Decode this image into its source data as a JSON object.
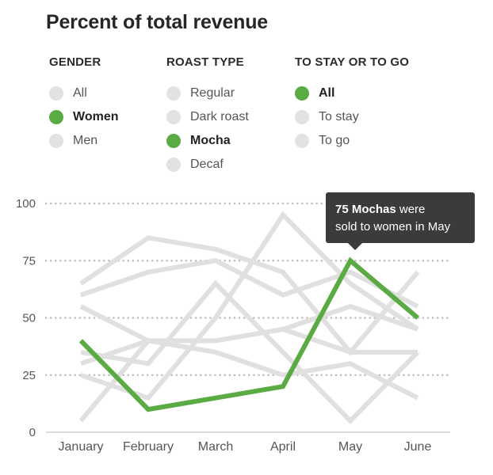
{
  "title": "Percent of total revenue",
  "filters": [
    {
      "header": "GENDER",
      "options": [
        {
          "label": "All",
          "active": false
        },
        {
          "label": "Women",
          "active": true
        },
        {
          "label": "Men",
          "active": false
        }
      ]
    },
    {
      "header": "ROAST TYPE",
      "options": [
        {
          "label": "Regular",
          "active": false
        },
        {
          "label": "Dark roast",
          "active": false
        },
        {
          "label": "Mocha",
          "active": true
        },
        {
          "label": "Decaf",
          "active": false
        }
      ]
    },
    {
      "header": "TO STAY OR TO GO",
      "options": [
        {
          "label": "All",
          "active": true
        },
        {
          "label": "To stay",
          "active": false
        },
        {
          "label": "To go",
          "active": false
        }
      ]
    }
  ],
  "tooltip": {
    "bold": "75 Mochas",
    "text_1": " were",
    "text_2": "sold to women in May"
  },
  "colors": {
    "highlight": "#5aab44",
    "muted": "#e0e0e0",
    "tooltip_bg": "#3b3b3b",
    "filter_off": "#e2e2e2"
  },
  "chart_data": {
    "type": "line",
    "categories": [
      "January",
      "February",
      "March",
      "April",
      "May",
      "June"
    ],
    "ylim": [
      0,
      100
    ],
    "yticks": [
      0,
      25,
      50,
      75,
      100
    ],
    "grid": "dotted horizontal",
    "highlighted_series": {
      "values": [
        40,
        10,
        15,
        20,
        75,
        50
      ]
    },
    "background_series": [
      {
        "values": [
          65,
          85,
          80,
          70,
          35,
          70
        ]
      },
      {
        "values": [
          60,
          70,
          75,
          60,
          70,
          55
        ]
      },
      {
        "values": [
          55,
          40,
          35,
          25,
          30,
          15
        ]
      },
      {
        "values": [
          35,
          30,
          65,
          35,
          5,
          35
        ]
      },
      {
        "values": [
          30,
          40,
          40,
          45,
          55,
          45
        ]
      },
      {
        "values": [
          25,
          15,
          50,
          95,
          65,
          45
        ]
      },
      {
        "values": [
          5,
          40,
          40,
          45,
          35,
          35
        ]
      }
    ]
  }
}
